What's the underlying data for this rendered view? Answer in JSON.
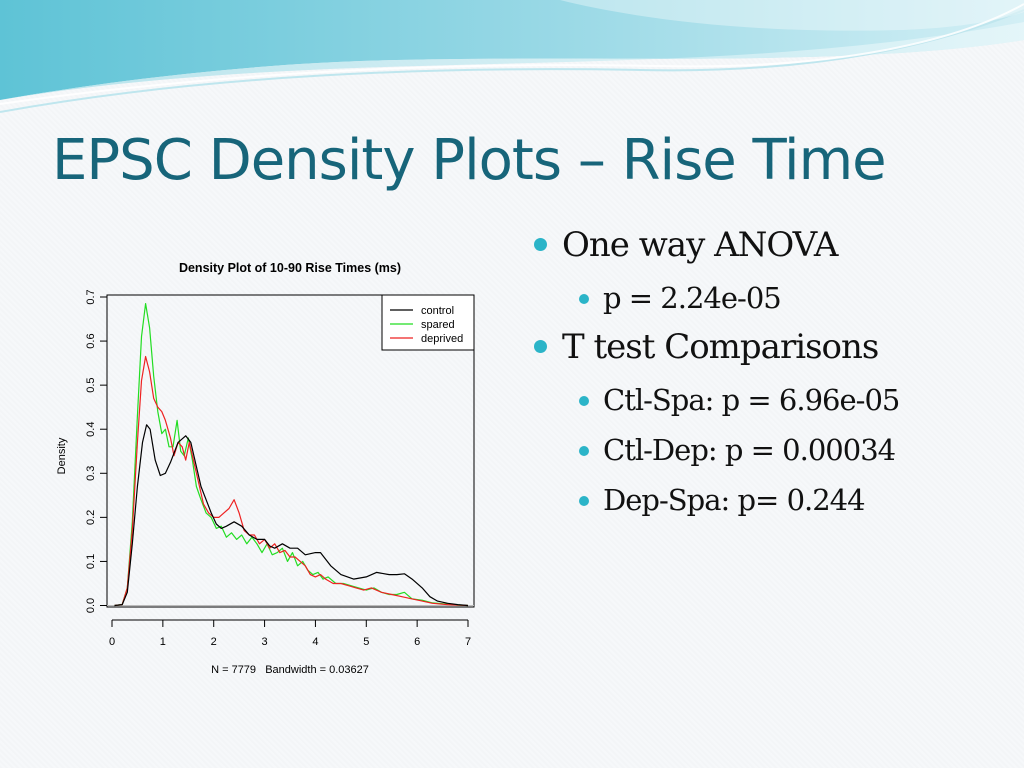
{
  "slide": {
    "title": "EPSC Density Plots – Rise Time",
    "accent_color": "#17657a",
    "bullet_color": "#2bb4c8"
  },
  "bullets": [
    {
      "level": 1,
      "text": "One way ANOVA"
    },
    {
      "level": 2,
      "text": "p = 2.24e-05"
    },
    {
      "level": 1,
      "text": "T test Comparisons"
    },
    {
      "level": 2,
      "text": "Ctl-Spa: p = 6.96e-05"
    },
    {
      "level": 2,
      "text": "Ctl-Dep: p = 0.00034"
    },
    {
      "level": 2,
      "text": "Dep-Spa: p= 0.244"
    }
  ],
  "chart_data": {
    "type": "line",
    "title": "Density Plot of 10-90 Rise Times (ms)",
    "xlabel": "N = 7779   Bandwidth = 0.03627",
    "ylabel": "Density",
    "xlim": [
      0,
      7
    ],
    "ylim": [
      0,
      0.7
    ],
    "xticks": [
      "0",
      "1",
      "2",
      "3",
      "4",
      "5",
      "6",
      "7"
    ],
    "yticks": [
      "0.0",
      "0.1",
      "0.2",
      "0.3",
      "0.4",
      "0.5",
      "0.6",
      "0.7"
    ],
    "legend_position": "top-right",
    "grid": false,
    "series": [
      {
        "name": "control",
        "color": "#000000",
        "points": [
          [
            0.05,
            0
          ],
          [
            0.2,
            0.002
          ],
          [
            0.3,
            0.03
          ],
          [
            0.4,
            0.14
          ],
          [
            0.5,
            0.27
          ],
          [
            0.6,
            0.37
          ],
          [
            0.68,
            0.41
          ],
          [
            0.75,
            0.4
          ],
          [
            0.85,
            0.33
          ],
          [
            0.95,
            0.295
          ],
          [
            1.05,
            0.3
          ],
          [
            1.15,
            0.325
          ],
          [
            1.3,
            0.37
          ],
          [
            1.45,
            0.385
          ],
          [
            1.55,
            0.37
          ],
          [
            1.65,
            0.32
          ],
          [
            1.75,
            0.27
          ],
          [
            1.85,
            0.24
          ],
          [
            1.95,
            0.21
          ],
          [
            2.05,
            0.185
          ],
          [
            2.15,
            0.175
          ],
          [
            2.25,
            0.18
          ],
          [
            2.4,
            0.19
          ],
          [
            2.55,
            0.18
          ],
          [
            2.7,
            0.16
          ],
          [
            2.85,
            0.15
          ],
          [
            3.0,
            0.15
          ],
          [
            3.1,
            0.135
          ],
          [
            3.2,
            0.13
          ],
          [
            3.35,
            0.14
          ],
          [
            3.5,
            0.13
          ],
          [
            3.65,
            0.13
          ],
          [
            3.8,
            0.115
          ],
          [
            4.0,
            0.12
          ],
          [
            4.1,
            0.12
          ],
          [
            4.3,
            0.09
          ],
          [
            4.5,
            0.07
          ],
          [
            4.75,
            0.06
          ],
          [
            5.0,
            0.065
          ],
          [
            5.2,
            0.075
          ],
          [
            5.45,
            0.07
          ],
          [
            5.6,
            0.07
          ],
          [
            5.75,
            0.072
          ],
          [
            5.9,
            0.06
          ],
          [
            6.1,
            0.04
          ],
          [
            6.25,
            0.02
          ],
          [
            6.4,
            0.01
          ],
          [
            6.6,
            0.005
          ],
          [
            6.8,
            0.002
          ],
          [
            7.0,
            0
          ]
        ]
      },
      {
        "name": "spared",
        "color": "#22dd22",
        "points": [
          [
            0.05,
            0
          ],
          [
            0.2,
            0.002
          ],
          [
            0.3,
            0.04
          ],
          [
            0.4,
            0.19
          ],
          [
            0.5,
            0.43
          ],
          [
            0.58,
            0.61
          ],
          [
            0.66,
            0.685
          ],
          [
            0.74,
            0.63
          ],
          [
            0.82,
            0.52
          ],
          [
            0.9,
            0.44
          ],
          [
            0.98,
            0.39
          ],
          [
            1.05,
            0.4
          ],
          [
            1.12,
            0.36
          ],
          [
            1.2,
            0.36
          ],
          [
            1.28,
            0.42
          ],
          [
            1.35,
            0.35
          ],
          [
            1.42,
            0.34
          ],
          [
            1.5,
            0.38
          ],
          [
            1.58,
            0.33
          ],
          [
            1.66,
            0.27
          ],
          [
            1.75,
            0.24
          ],
          [
            1.85,
            0.21
          ],
          [
            1.95,
            0.2
          ],
          [
            2.05,
            0.175
          ],
          [
            2.15,
            0.18
          ],
          [
            2.25,
            0.155
          ],
          [
            2.35,
            0.165
          ],
          [
            2.45,
            0.15
          ],
          [
            2.55,
            0.16
          ],
          [
            2.65,
            0.14
          ],
          [
            2.75,
            0.155
          ],
          [
            2.85,
            0.14
          ],
          [
            2.95,
            0.12
          ],
          [
            3.05,
            0.14
          ],
          [
            3.15,
            0.115
          ],
          [
            3.25,
            0.12
          ],
          [
            3.35,
            0.13
          ],
          [
            3.45,
            0.1
          ],
          [
            3.55,
            0.12
          ],
          [
            3.65,
            0.09
          ],
          [
            3.75,
            0.1
          ],
          [
            3.85,
            0.08
          ],
          [
            3.95,
            0.07
          ],
          [
            4.05,
            0.075
          ],
          [
            4.15,
            0.06
          ],
          [
            4.25,
            0.065
          ],
          [
            4.4,
            0.05
          ],
          [
            4.55,
            0.05
          ],
          [
            4.7,
            0.045
          ],
          [
            4.85,
            0.04
          ],
          [
            5.0,
            0.035
          ],
          [
            5.15,
            0.04
          ],
          [
            5.3,
            0.03
          ],
          [
            5.45,
            0.025
          ],
          [
            5.6,
            0.025
          ],
          [
            5.75,
            0.03
          ],
          [
            5.9,
            0.015
          ],
          [
            6.1,
            0.012
          ],
          [
            6.3,
            0.006
          ],
          [
            6.5,
            0.004
          ],
          [
            6.8,
            0.001
          ],
          [
            7.0,
            0
          ]
        ]
      },
      {
        "name": "deprived",
        "color": "#ee2222",
        "points": [
          [
            0.05,
            0
          ],
          [
            0.2,
            0.002
          ],
          [
            0.3,
            0.04
          ],
          [
            0.4,
            0.17
          ],
          [
            0.5,
            0.37
          ],
          [
            0.58,
            0.51
          ],
          [
            0.66,
            0.565
          ],
          [
            0.74,
            0.53
          ],
          [
            0.82,
            0.47
          ],
          [
            0.9,
            0.45
          ],
          [
            0.98,
            0.44
          ],
          [
            1.05,
            0.42
          ],
          [
            1.15,
            0.38
          ],
          [
            1.22,
            0.34
          ],
          [
            1.3,
            0.37
          ],
          [
            1.38,
            0.36
          ],
          [
            1.45,
            0.33
          ],
          [
            1.52,
            0.37
          ],
          [
            1.6,
            0.33
          ],
          [
            1.7,
            0.28
          ],
          [
            1.8,
            0.23
          ],
          [
            1.9,
            0.21
          ],
          [
            2.0,
            0.2
          ],
          [
            2.1,
            0.2
          ],
          [
            2.2,
            0.21
          ],
          [
            2.3,
            0.22
          ],
          [
            2.4,
            0.24
          ],
          [
            2.5,
            0.21
          ],
          [
            2.6,
            0.17
          ],
          [
            2.7,
            0.16
          ],
          [
            2.8,
            0.16
          ],
          [
            2.9,
            0.14
          ],
          [
            3.0,
            0.15
          ],
          [
            3.1,
            0.13
          ],
          [
            3.2,
            0.14
          ],
          [
            3.3,
            0.12
          ],
          [
            3.4,
            0.125
          ],
          [
            3.5,
            0.11
          ],
          [
            3.6,
            0.11
          ],
          [
            3.7,
            0.1
          ],
          [
            3.8,
            0.09
          ],
          [
            3.9,
            0.07
          ],
          [
            4.0,
            0.065
          ],
          [
            4.1,
            0.07
          ],
          [
            4.2,
            0.06
          ],
          [
            4.35,
            0.05
          ],
          [
            4.5,
            0.05
          ],
          [
            4.65,
            0.045
          ],
          [
            4.8,
            0.04
          ],
          [
            4.95,
            0.035
          ],
          [
            5.1,
            0.04
          ],
          [
            5.3,
            0.03
          ],
          [
            5.5,
            0.025
          ],
          [
            5.7,
            0.02
          ],
          [
            5.9,
            0.015
          ],
          [
            6.1,
            0.01
          ],
          [
            6.3,
            0.005
          ],
          [
            6.6,
            0.002
          ],
          [
            7.0,
            0
          ]
        ]
      }
    ]
  }
}
